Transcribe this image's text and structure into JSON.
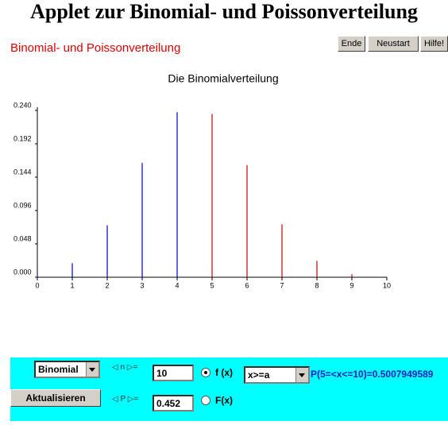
{
  "header": {
    "title": "Applet zur Binomial- und Poissonverteilung",
    "subtitle": "Binomial- und Poissonverteilung",
    "buttons": [
      "Ende",
      "Neustart",
      "Hilfe!"
    ]
  },
  "chart_data": {
    "type": "stem",
    "title": "Die Binomialverteilung",
    "x": [
      0,
      1,
      2,
      3,
      4,
      5,
      6,
      7,
      8,
      9,
      10
    ],
    "values": [
      0.00244,
      0.02014,
      0.07476,
      0.16445,
      0.23736,
      0.23494,
      0.16148,
      0.07611,
      0.02354,
      0.00432,
      0.00036
    ],
    "colors": [
      "#0000cc",
      "#0000cc",
      "#0000cc",
      "#0000cc",
      "#0000cc",
      "#cc0000",
      "#cc0000",
      "#cc0000",
      "#cc0000",
      "#cc0000",
      "#cc0000"
    ],
    "xlim": [
      0,
      10
    ],
    "xticks": [
      0,
      1,
      2,
      3,
      4,
      5,
      6,
      7,
      8,
      9,
      10
    ],
    "ylim": [
      0,
      0.24
    ],
    "yticks": [
      {
        "value": 0,
        "label": "0.000"
      },
      0.048,
      0.096,
      0.144,
      0.192,
      {
        "value": 0.24,
        "label": "0.240"
      }
    ]
  },
  "controls": {
    "distribution": "Binomial",
    "update_button": "Aktualisieren",
    "n_label": "n",
    "p_label": "P",
    "equals": "=",
    "n_value": "10",
    "p_value": "0.452",
    "radio_f": "f (x)",
    "radio_F": "F(x)",
    "mode": "x>=a",
    "result": "P(5=<x<=10)=0.5007949589"
  }
}
